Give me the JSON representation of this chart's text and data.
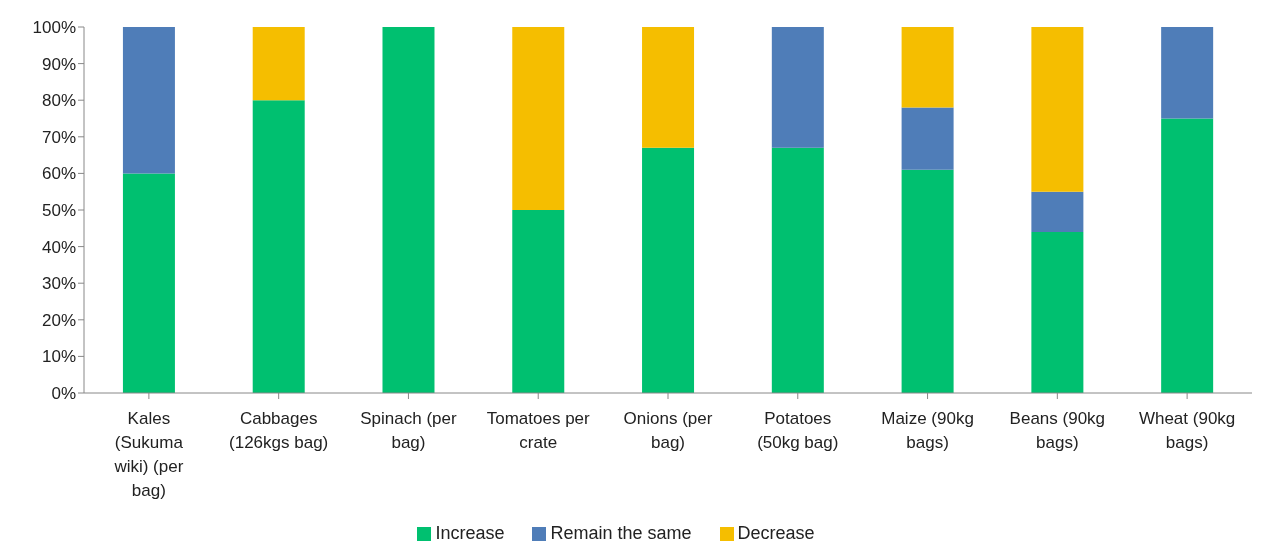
{
  "chart_data": {
    "type": "bar",
    "stacked": true,
    "categories": [
      "Kales (Sukuma wiki) (per bag)",
      "Cabbages (126kgs bag)",
      "Spinach (per bag)",
      "Tomatoes per crate",
      "Onions (per bag)",
      "Potatoes (50kg bag)",
      "Maize (90kg bags)",
      "Beans (90kg bags)",
      "Wheat (90kg bags)"
    ],
    "series": [
      {
        "name": "Increase",
        "color": "#00c070",
        "values": [
          60,
          80,
          100,
          50,
          67,
          67,
          61,
          44,
          75
        ]
      },
      {
        "name": "Remain the same",
        "color": "#4f7db8",
        "values": [
          40,
          0,
          0,
          0,
          0,
          33,
          17,
          11,
          25
        ]
      },
      {
        "name": "Decrease",
        "color": "#f5be00",
        "values": [
          0,
          20,
          0,
          50,
          33,
          0,
          22,
          45,
          0
        ]
      }
    ],
    "ylim": [
      0,
      100
    ],
    "yticks": [
      {
        "value": 0,
        "label": "0%"
      },
      {
        "value": 10,
        "label": "10%"
      },
      {
        "value": 20,
        "label": "20%"
      },
      {
        "value": 30,
        "label": "30%"
      },
      {
        "value": 40,
        "label": "40%"
      },
      {
        "value": 50,
        "label": "50%"
      },
      {
        "value": 60,
        "label": "60%"
      },
      {
        "value": 70,
        "label": "70%"
      },
      {
        "value": 80,
        "label": "80%"
      },
      {
        "value": 90,
        "label": "90%"
      },
      {
        "value": 100,
        "label": "100%"
      }
    ],
    "grid": false,
    "legend": "bottom"
  }
}
